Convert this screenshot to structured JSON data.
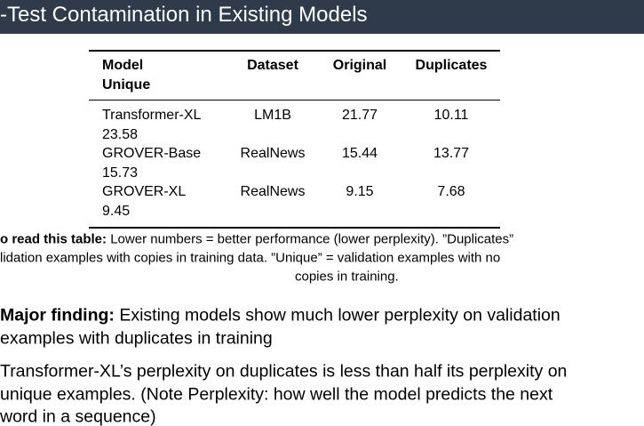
{
  "header": {
    "title": "-Test Contamination in Existing Models"
  },
  "table": {
    "columns": [
      "Model",
      "Dataset",
      "Original",
      "Duplicates",
      "Unique"
    ],
    "rows": [
      [
        "Transformer-XL",
        "LM1B",
        "21.77",
        "10.11",
        "23.58"
      ],
      [
        "GROVER-Base",
        "RealNews",
        "15.44",
        "13.77",
        "15.73"
      ],
      [
        "GROVER-XL",
        "RealNews",
        "9.15",
        "7.68",
        "9.45"
      ]
    ]
  },
  "note": {
    "label": "o read this table:",
    "lines": [
      "Lower numbers = better performance (lower perplexity). ”Duplicates”",
      "lidation examples with copies in training data. ”Unique” = validation examples with no",
      "copies in training."
    ]
  },
  "points": [
    {
      "label": "Major finding:",
      "lines": [
        "Existing models show much lower perplexity on validation",
        "examples with duplicates in training"
      ]
    },
    {
      "lines": [
        "Transformer-XL’s perplexity on duplicates is less than half its perplexity on",
        "unique examples. (Note Perplexity: how well the model predicts the next",
        "word in a sequence)"
      ]
    }
  ]
}
